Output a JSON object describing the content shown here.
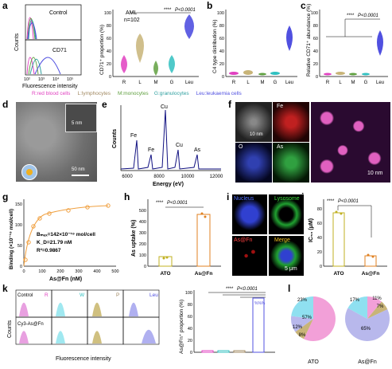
{
  "panel_labels": [
    "a",
    "b",
    "c",
    "d",
    "e",
    "f",
    "g",
    "h",
    "i",
    "j",
    "k",
    "l"
  ],
  "panel_a": {
    "flow_labels": {
      "top": "Control",
      "bottom": "CD71",
      "ylabel": "Counts",
      "xlabel": "Fluorescence intensity",
      "ticks": [
        "10²",
        "10³",
        "10⁴",
        "10⁵"
      ]
    },
    "violin": {
      "ylabel": "CD71⁺ proportion (%)",
      "annot_title": "AML",
      "annot_n": "n=102",
      "sig": "****",
      "p": "P<0.0001",
      "yticks": [
        "0",
        "20",
        "40",
        "60",
        "80",
        "100"
      ],
      "xcats": [
        "R",
        "L",
        "M",
        "G",
        "Leu"
      ]
    }
  },
  "panel_b": {
    "ylabel": "C4 type distribution (%)",
    "yticks": [
      "0",
      "20",
      "40",
      "60",
      "80",
      "100"
    ],
    "xcats": [
      "R",
      "L",
      "M",
      "G",
      "Leu"
    ]
  },
  "panel_c": {
    "ylabel": "Relative CD71⁺ abundance (%)",
    "sig": "****",
    "p": "P<0.0001",
    "yticks": [
      "0",
      "20",
      "40",
      "60",
      "80",
      "100"
    ],
    "xcats": [
      "R",
      "L",
      "M",
      "G",
      "Leu"
    ]
  },
  "legend": {
    "r": "R:red blood cells",
    "l": "L:lymphocytes",
    "m": "M:monocytes",
    "g": "G:granulocytes",
    "leu": "Leu:leukaemia cells",
    "colors": {
      "r": "#e040c0",
      "l": "#a08860",
      "m": "#60a040",
      "g": "#30a0a0",
      "leu": "#5050e0"
    }
  },
  "panel_d": {
    "inset_scale": "5 nm",
    "scale": "50 nm"
  },
  "panel_e": {
    "ylabel": "Counts",
    "xlabel": "Energy (eV)",
    "xticks": [
      "6000",
      "8000",
      "10000",
      "12000"
    ],
    "peaks": [
      "Fe",
      "Fe",
      "Cu",
      "Cu",
      "As"
    ]
  },
  "panel_f": {
    "labels": {
      "fe": "Fe",
      "o": "O",
      "as": "As"
    },
    "scale1": "10 nm",
    "scale2": "10 nm"
  },
  "panel_g": {
    "ylabel": "Binding (×10⁻¹⁹ mol/cell)",
    "xlabel": "As@Fn (nM)",
    "bmax": "Bₘₐₓ=142×10⁻¹⁹ mol/cell",
    "kd": "K_D=21.79 nM",
    "r2": "R²=0.9867",
    "xticks": [
      "0",
      "100",
      "200",
      "300",
      "400",
      "500"
    ],
    "yticks": [
      "0",
      "50",
      "100",
      "150"
    ]
  },
  "panel_h": {
    "ylabel": "As uptake (%)",
    "sig": "****",
    "p": "P<0.0001",
    "cats": [
      "ATO",
      "As@Fn"
    ],
    "yticks": [
      "0",
      "100",
      "200",
      "300",
      "400",
      "500"
    ]
  },
  "panel_i": {
    "labels": {
      "nucleus": "Nucleus",
      "lysosome": "Lysosome",
      "asfn": "As@Fn",
      "merge": "Merge"
    },
    "scale": "5 μm"
  },
  "panel_j": {
    "ylabel": "IC₅₀ (μM)",
    "sig": "****",
    "p": "P<0.0001",
    "cats": [
      "ATO",
      "As@Fn"
    ],
    "yticks": [
      "0",
      "20",
      "40",
      "60",
      "80"
    ]
  },
  "panel_k": {
    "ylabel": "Counts",
    "xlabel": "Fluorescence intensity",
    "rowlabels": [
      "Control",
      "Cy3-As@Fn"
    ],
    "cols": [
      "R",
      "W",
      "P",
      "Leu"
    ],
    "bar_ylabel": "As@Fn⁺ proportion (%)",
    "sig": "****",
    "p": "P<0.0001",
    "bar_cats": [
      "R",
      "W",
      "P",
      "Leu"
    ],
    "bar_yticks": [
      "0",
      "20",
      "40",
      "60",
      "80",
      "100"
    ]
  },
  "panel_l": {
    "pie1": {
      "label": "ATO",
      "slices": [
        {
          "v": 57,
          "c": "#f2a0d8"
        },
        {
          "v": 8,
          "c": "#c8b478"
        },
        {
          "v": 12,
          "c": "#b8b8ec"
        },
        {
          "v": 23,
          "c": "#8fe0f0"
        }
      ]
    },
    "pie2": {
      "label": "As@Fn",
      "slices": [
        {
          "v": 11,
          "c": "#f2a0d8"
        },
        {
          "v": 7,
          "c": "#c8b478"
        },
        {
          "v": 65,
          "c": "#b8b8ec"
        },
        {
          "v": 17,
          "c": "#8fe0f0"
        }
      ]
    }
  }
}
